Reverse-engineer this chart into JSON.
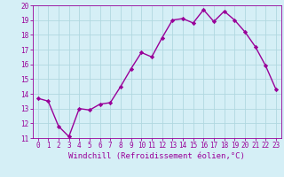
{
  "x": [
    0,
    1,
    2,
    3,
    4,
    5,
    6,
    7,
    8,
    9,
    10,
    11,
    12,
    13,
    14,
    15,
    16,
    17,
    18,
    19,
    20,
    21,
    22,
    23
  ],
  "y": [
    13.7,
    13.5,
    11.8,
    11.1,
    13.0,
    12.9,
    13.3,
    13.4,
    14.5,
    15.7,
    16.8,
    16.5,
    17.8,
    19.0,
    19.1,
    18.8,
    19.7,
    18.9,
    19.6,
    19.0,
    18.2,
    17.2,
    15.9,
    14.3
  ],
  "line_color": "#990099",
  "marker": "D",
  "marker_size": 2.2,
  "background_color": "#d5eff6",
  "grid_color": "#b0d8e0",
  "xlabel": "Windchill (Refroidissement éolien,°C)",
  "ylim": [
    11,
    20
  ],
  "xlim": [
    -0.5,
    23.5
  ],
  "yticks": [
    11,
    12,
    13,
    14,
    15,
    16,
    17,
    18,
    19,
    20
  ],
  "xticks": [
    0,
    1,
    2,
    3,
    4,
    5,
    6,
    7,
    8,
    9,
    10,
    11,
    12,
    13,
    14,
    15,
    16,
    17,
    18,
    19,
    20,
    21,
    22,
    23
  ],
  "tick_color": "#990099",
  "tick_label_color": "#990099",
  "xlabel_color": "#990099",
  "xlabel_fontsize": 6.5,
  "tick_fontsize": 5.5,
  "line_width": 1.0
}
